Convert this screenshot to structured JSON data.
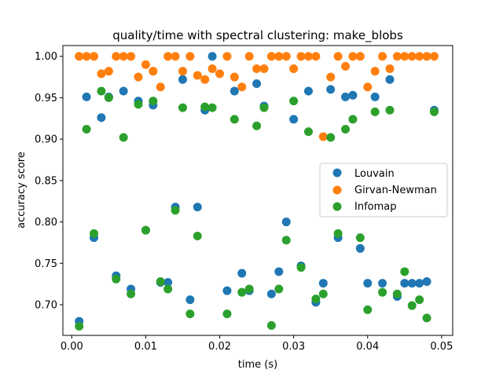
{
  "chart_data": {
    "type": "scatter",
    "title": "quality/time with spectral clustering: make_blobs",
    "xlabel": "time (s)",
    "ylabel": "accuracy score",
    "xlim": [
      -0.0012,
      0.0515
    ],
    "ylim": [
      0.663,
      1.013
    ],
    "xticks": [
      0.0,
      0.01,
      0.02,
      0.03,
      0.04,
      0.05
    ],
    "xtick_labels": [
      "0.00",
      "0.01",
      "0.02",
      "0.03",
      "0.04",
      "0.05"
    ],
    "yticks": [
      0.7,
      0.75,
      0.8,
      0.85,
      0.9,
      0.95,
      1.0
    ],
    "ytick_labels": [
      "0.70",
      "0.75",
      "0.80",
      "0.85",
      "0.90",
      "0.95",
      "1.00"
    ],
    "legend_position": "center-right",
    "grid": false,
    "series": [
      {
        "name": "Louvain",
        "color": "#1f77b4",
        "points": [
          [
            0.001,
            0.68
          ],
          [
            0.002,
            0.951
          ],
          [
            0.003,
            0.781
          ],
          [
            0.004,
            0.926
          ],
          [
            0.005,
            0.951
          ],
          [
            0.006,
            0.735
          ],
          [
            0.007,
            0.958
          ],
          [
            0.008,
            0.719
          ],
          [
            0.009,
            0.946
          ],
          [
            0.01,
            0.79
          ],
          [
            0.011,
            0.941
          ],
          [
            0.012,
            0.727
          ],
          [
            0.013,
            0.727
          ],
          [
            0.014,
            0.818
          ],
          [
            0.015,
            0.972
          ],
          [
            0.016,
            0.706
          ],
          [
            0.017,
            0.818
          ],
          [
            0.018,
            0.935
          ],
          [
            0.019,
            1.0
          ],
          [
            0.021,
            0.717
          ],
          [
            0.022,
            0.958
          ],
          [
            0.023,
            0.738
          ],
          [
            0.024,
            0.717
          ],
          [
            0.025,
            0.967
          ],
          [
            0.026,
            0.94
          ],
          [
            0.027,
            0.713
          ],
          [
            0.028,
            0.74
          ],
          [
            0.029,
            0.8
          ],
          [
            0.03,
            0.924
          ],
          [
            0.031,
            0.747
          ],
          [
            0.032,
            0.958
          ],
          [
            0.033,
            0.703
          ],
          [
            0.034,
            0.726
          ],
          [
            0.035,
            0.96
          ],
          [
            0.036,
            0.781
          ],
          [
            0.037,
            0.951
          ],
          [
            0.038,
            0.953
          ],
          [
            0.039,
            0.768
          ],
          [
            0.04,
            0.726
          ],
          [
            0.041,
            0.951
          ],
          [
            0.042,
            0.726
          ],
          [
            0.043,
            0.972
          ],
          [
            0.044,
            0.71
          ],
          [
            0.045,
            0.726
          ],
          [
            0.046,
            0.726
          ],
          [
            0.047,
            0.726
          ],
          [
            0.048,
            0.728
          ],
          [
            0.049,
            0.935
          ]
        ]
      },
      {
        "name": "Girvan-Newman",
        "color": "#ff7f0e",
        "points": [
          [
            0.001,
            1.0
          ],
          [
            0.002,
            1.0
          ],
          [
            0.003,
            1.0
          ],
          [
            0.004,
            0.979
          ],
          [
            0.005,
            0.982
          ],
          [
            0.006,
            1.0
          ],
          [
            0.007,
            1.0
          ],
          [
            0.008,
            1.0
          ],
          [
            0.009,
            0.975
          ],
          [
            0.01,
            0.99
          ],
          [
            0.011,
            0.982
          ],
          [
            0.012,
            0.963
          ],
          [
            0.013,
            1.0
          ],
          [
            0.014,
            1.0
          ],
          [
            0.015,
            0.982
          ],
          [
            0.016,
            1.0
          ],
          [
            0.017,
            0.977
          ],
          [
            0.018,
            0.972
          ],
          [
            0.019,
            0.985
          ],
          [
            0.02,
            0.979
          ],
          [
            0.021,
            1.0
          ],
          [
            0.022,
            0.975
          ],
          [
            0.023,
            0.963
          ],
          [
            0.024,
            1.0
          ],
          [
            0.025,
            0.985
          ],
          [
            0.026,
            0.985
          ],
          [
            0.027,
            1.0
          ],
          [
            0.028,
            1.0
          ],
          [
            0.029,
            1.0
          ],
          [
            0.03,
            0.985
          ],
          [
            0.031,
            1.0
          ],
          [
            0.032,
            1.0
          ],
          [
            0.033,
            1.0
          ],
          [
            0.034,
            0.903
          ],
          [
            0.035,
            0.975
          ],
          [
            0.036,
            1.0
          ],
          [
            0.037,
            0.988
          ],
          [
            0.038,
            1.0
          ],
          [
            0.039,
            1.0
          ],
          [
            0.04,
            0.963
          ],
          [
            0.041,
            0.982
          ],
          [
            0.042,
            1.0
          ],
          [
            0.043,
            0.985
          ],
          [
            0.044,
            1.0
          ],
          [
            0.045,
            1.0
          ],
          [
            0.046,
            1.0
          ],
          [
            0.047,
            1.0
          ],
          [
            0.048,
            1.0
          ],
          [
            0.049,
            1.0
          ]
        ]
      },
      {
        "name": "Infomap",
        "color": "#2ca02c",
        "points": [
          [
            0.001,
            0.674
          ],
          [
            0.002,
            0.912
          ],
          [
            0.003,
            0.786
          ],
          [
            0.004,
            0.958
          ],
          [
            0.005,
            0.95
          ],
          [
            0.006,
            0.731
          ],
          [
            0.007,
            0.902
          ],
          [
            0.008,
            0.713
          ],
          [
            0.009,
            0.942
          ],
          [
            0.01,
            0.79
          ],
          [
            0.011,
            0.946
          ],
          [
            0.012,
            0.728
          ],
          [
            0.013,
            0.719
          ],
          [
            0.014,
            0.814
          ],
          [
            0.015,
            0.938
          ],
          [
            0.016,
            0.689
          ],
          [
            0.017,
            0.783
          ],
          [
            0.018,
            0.939
          ],
          [
            0.019,
            0.938
          ],
          [
            0.021,
            0.689
          ],
          [
            0.022,
            0.924
          ],
          [
            0.023,
            0.715
          ],
          [
            0.024,
            0.719
          ],
          [
            0.025,
            0.916
          ],
          [
            0.026,
            0.938
          ],
          [
            0.027,
            0.675
          ],
          [
            0.028,
            0.719
          ],
          [
            0.029,
            0.778
          ],
          [
            0.03,
            0.946
          ],
          [
            0.031,
            0.745
          ],
          [
            0.032,
            0.909
          ],
          [
            0.033,
            0.707
          ],
          [
            0.034,
            0.713
          ],
          [
            0.035,
            0.902
          ],
          [
            0.036,
            0.786
          ],
          [
            0.037,
            0.912
          ],
          [
            0.038,
            0.924
          ],
          [
            0.039,
            0.781
          ],
          [
            0.04,
            0.694
          ],
          [
            0.041,
            0.933
          ],
          [
            0.042,
            0.715
          ],
          [
            0.043,
            0.935
          ],
          [
            0.044,
            0.713
          ],
          [
            0.045,
            0.74
          ],
          [
            0.046,
            0.699
          ],
          [
            0.047,
            0.706
          ],
          [
            0.048,
            0.684
          ],
          [
            0.049,
            0.933
          ]
        ]
      }
    ]
  }
}
